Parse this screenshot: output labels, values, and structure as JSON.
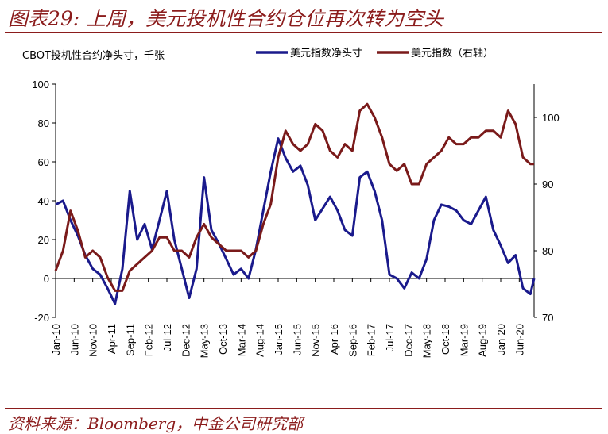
{
  "title": "图表29: 上周，美元投机性合约仓位再次转为空头",
  "source": "资料来源：Bloomberg，中金公司研究部",
  "chart_data": {
    "type": "line",
    "title": "图表29: 上周，美元投机性合约仓位再次转为空头",
    "ylabel_left": "CBOT投机性合约净头寸，千张",
    "ylabel_right": "",
    "ylim_left": [
      -20,
      100
    ],
    "ylim_right": [
      70,
      105
    ],
    "yticks_left": [
      "100",
      "80",
      "60",
      "40",
      "20",
      "0",
      "-20"
    ],
    "yticks_right": [
      "100",
      "90",
      "80",
      "70"
    ],
    "neg_tick_color": "#ff0000",
    "x_ticks": [
      "Jan-10",
      "Jun-10",
      "Nov-10",
      "Apr-11",
      "Sep-11",
      "Feb-12",
      "Jul-12",
      "Dec-12",
      "May-13",
      "Oct-13",
      "Mar-14",
      "Aug-14",
      "Jan-15",
      "Jun-15",
      "Nov-15",
      "Apr-16",
      "Sep-16",
      "Feb-17",
      "Jul-17",
      "Dec-17",
      "May-18",
      "Oct-18",
      "Mar-19",
      "Aug-19",
      "Jan-20",
      "Jun-20"
    ],
    "legend_position": "top-right",
    "series": [
      {
        "name": "美元指数净头寸",
        "axis": "left",
        "color": "#1a1a8c",
        "x": [
          "2010-01",
          "2010-03",
          "2010-05",
          "2010-07",
          "2010-09",
          "2010-11",
          "2011-01",
          "2011-03",
          "2011-05",
          "2011-07",
          "2011-09",
          "2011-11",
          "2012-01",
          "2012-03",
          "2012-05",
          "2012-07",
          "2012-09",
          "2012-11",
          "2013-01",
          "2013-03",
          "2013-05",
          "2013-07",
          "2013-09",
          "2013-11",
          "2014-01",
          "2014-03",
          "2014-05",
          "2014-07",
          "2014-09",
          "2014-11",
          "2015-01",
          "2015-03",
          "2015-05",
          "2015-07",
          "2015-09",
          "2015-11",
          "2016-01",
          "2016-03",
          "2016-05",
          "2016-07",
          "2016-09",
          "2016-11",
          "2017-01",
          "2017-03",
          "2017-05",
          "2017-07",
          "2017-09",
          "2017-11",
          "2018-01",
          "2018-03",
          "2018-05",
          "2018-07",
          "2018-09",
          "2018-11",
          "2019-01",
          "2019-03",
          "2019-05",
          "2019-07",
          "2019-09",
          "2019-11",
          "2020-01",
          "2020-03",
          "2020-05",
          "2020-07",
          "2020-09",
          "2020-10"
        ],
        "values": [
          38,
          40,
          30,
          22,
          12,
          5,
          2,
          -5,
          -13,
          5,
          45,
          20,
          28,
          15,
          30,
          45,
          20,
          5,
          -10,
          5,
          52,
          25,
          18,
          10,
          2,
          5,
          0,
          15,
          35,
          55,
          72,
          62,
          55,
          58,
          48,
          30,
          36,
          42,
          35,
          25,
          22,
          52,
          55,
          45,
          30,
          2,
          0,
          -5,
          3,
          0,
          10,
          30,
          38,
          37,
          35,
          30,
          28,
          35,
          42,
          25,
          17,
          8,
          12,
          -5,
          -8,
          0
        ]
      },
      {
        "name": "美元指数（右轴）",
        "axis": "right",
        "color": "#7a1a1a",
        "x": [
          "2010-01",
          "2010-03",
          "2010-05",
          "2010-07",
          "2010-09",
          "2010-11",
          "2011-01",
          "2011-03",
          "2011-05",
          "2011-07",
          "2011-09",
          "2011-11",
          "2012-01",
          "2012-03",
          "2012-05",
          "2012-07",
          "2012-09",
          "2012-11",
          "2013-01",
          "2013-03",
          "2013-05",
          "2013-07",
          "2013-09",
          "2013-11",
          "2014-01",
          "2014-03",
          "2014-05",
          "2014-07",
          "2014-09",
          "2014-11",
          "2015-01",
          "2015-03",
          "2015-05",
          "2015-07",
          "2015-09",
          "2015-11",
          "2016-01",
          "2016-03",
          "2016-05",
          "2016-07",
          "2016-09",
          "2016-11",
          "2017-01",
          "2017-03",
          "2017-05",
          "2017-07",
          "2017-09",
          "2017-11",
          "2018-01",
          "2018-03",
          "2018-05",
          "2018-07",
          "2018-09",
          "2018-11",
          "2019-01",
          "2019-03",
          "2019-05",
          "2019-07",
          "2019-09",
          "2019-11",
          "2020-01",
          "2020-03",
          "2020-05",
          "2020-07",
          "2020-09",
          "2020-10"
        ],
        "values": [
          77,
          80,
          86,
          83,
          79,
          80,
          79,
          76,
          74,
          74,
          77,
          78,
          79,
          80,
          82,
          82,
          80,
          80,
          79,
          82,
          84,
          82,
          81,
          80,
          80,
          80,
          79,
          80,
          84,
          87,
          94,
          98,
          96,
          95,
          96,
          99,
          98,
          95,
          94,
          96,
          95,
          101,
          102,
          100,
          97,
          93,
          92,
          93,
          90,
          90,
          93,
          94,
          95,
          97,
          96,
          96,
          97,
          97,
          98,
          98,
          97,
          101,
          99,
          94,
          93,
          93
        ]
      }
    ]
  }
}
